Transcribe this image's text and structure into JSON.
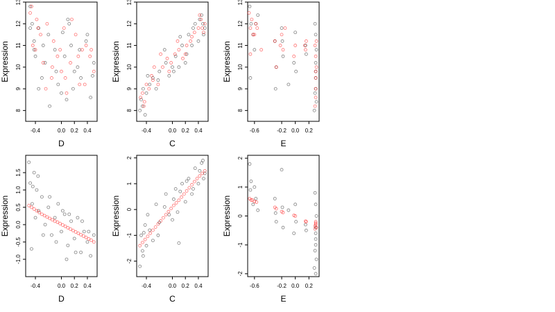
{
  "colors": {
    "black_points": "#1a1a1a",
    "red_points": "#ff0000",
    "axis": "#000000",
    "background": "#ffffff"
  },
  "chart_data": [
    {
      "type": "scatter",
      "xlabel": "D",
      "ylabel": "Expression",
      "xlim": [
        -0.55,
        0.55
      ],
      "ylim": [
        7.5,
        13.0
      ],
      "xticks": [
        -0.4,
        0.0,
        0.2,
        0.4
      ],
      "xtick_labels": [
        "-0.4",
        "0.0",
        "0.2",
        "0.4"
      ],
      "yticks": [
        8,
        9,
        10,
        11,
        12,
        13
      ],
      "ytick_labels": [
        "8",
        "9",
        "10",
        "11",
        "12",
        "13"
      ],
      "grid": false,
      "series": [
        {
          "color": "#1a1a1a",
          "x": [
            -0.48,
            -0.45,
            -0.42,
            -0.4,
            -0.35,
            -0.3,
            -0.25,
            -0.2,
            -0.1,
            -0.05,
            0.0,
            0.05,
            0.1,
            0.15,
            0.2,
            0.25,
            0.3,
            0.4,
            0.45,
            0.5,
            -0.48,
            -0.42,
            -0.35,
            -0.28,
            -0.18,
            -0.08,
            0.02,
            0.08,
            0.12,
            0.18,
            0.28,
            0.38,
            0.48
          ],
          "y": [
            12.8,
            12.0,
            11.2,
            10.5,
            11.8,
            9.5,
            10.2,
            11.5,
            10.8,
            9.2,
            8.8,
            10.5,
            12.2,
            11.0,
            9.8,
            10.0,
            9.5,
            11.5,
            8.6,
            10.2,
            11.8,
            10.8,
            9.0,
            11.0,
            8.2,
            9.8,
            11.6,
            8.5,
            12.0,
            9.0,
            10.8,
            11.2,
            9.6
          ]
        },
        {
          "color": "#ff0000",
          "x": [
            -0.48,
            -0.44,
            -0.4,
            -0.38,
            -0.32,
            -0.28,
            -0.22,
            -0.15,
            -0.12,
            -0.06,
            0.0,
            0.04,
            0.08,
            0.14,
            0.22,
            0.28,
            0.32,
            0.38,
            0.44,
            0.5,
            -0.46,
            -0.36,
            -0.24,
            -0.14,
            -0.02,
            0.06,
            0.16,
            0.26,
            0.36,
            0.46
          ],
          "y": [
            12.5,
            11.0,
            10.8,
            12.2,
            11.5,
            10.2,
            12.0,
            9.5,
            11.2,
            10.5,
            9.8,
            11.8,
            8.8,
            10.2,
            11.5,
            9.2,
            10.8,
            11.0,
            10.5,
            9.8,
            12.8,
            11.8,
            9.0,
            10.0,
            10.8,
            9.5,
            12.2,
            10.5,
            9.2,
            10.8
          ]
        }
      ]
    },
    {
      "type": "scatter",
      "xlabel": "C",
      "ylabel": "Expression",
      "xlim": [
        -0.55,
        0.55
      ],
      "ylim": [
        7.5,
        13.0
      ],
      "xticks": [
        -0.4,
        0.0,
        0.2,
        0.4
      ],
      "xtick_labels": [
        "-0.4",
        "0.0",
        "0.2",
        "0.4"
      ],
      "yticks": [
        8,
        9,
        10,
        11,
        12,
        13
      ],
      "ytick_labels": [
        "8",
        "9",
        "10",
        "11",
        "12",
        "13"
      ],
      "grid": false,
      "series": [
        {
          "color": "#1a1a1a",
          "x": [
            -0.5,
            -0.48,
            -0.45,
            -0.42,
            -0.4,
            -0.35,
            -0.3,
            -0.25,
            -0.2,
            -0.1,
            -0.05,
            0.0,
            0.05,
            0.1,
            0.15,
            0.2,
            0.25,
            0.3,
            0.35,
            0.4,
            0.45,
            0.48,
            0.5,
            -0.46,
            -0.38,
            -0.22,
            -0.12,
            0.02,
            0.12,
            0.22,
            0.32,
            0.42,
            0.47
          ],
          "y": [
            8.0,
            8.5,
            9.0,
            7.8,
            8.8,
            9.2,
            9.5,
            9.0,
            9.8,
            10.2,
            9.6,
            10.0,
            10.5,
            10.0,
            11.0,
            10.2,
            11.5,
            11.0,
            12.0,
            11.2,
            12.4,
            11.5,
            11.8,
            8.2,
            9.6,
            9.4,
            10.8,
            9.8,
            11.4,
            10.6,
            11.8,
            12.2,
            12.0
          ]
        },
        {
          "color": "#ff0000",
          "x": [
            -0.49,
            -0.46,
            -0.43,
            -0.4,
            -0.36,
            -0.32,
            -0.28,
            -0.22,
            -0.15,
            -0.08,
            -0.02,
            0.04,
            0.1,
            0.16,
            0.22,
            0.28,
            0.34,
            0.4,
            0.44,
            0.48,
            0.5,
            -0.44,
            -0.3,
            -0.18,
            -0.05,
            0.08,
            0.2,
            0.3,
            0.42,
            0.46
          ],
          "y": [
            8.6,
            8.8,
            8.4,
            9.2,
            9.0,
            9.6,
            10.0,
            9.2,
            10.0,
            10.4,
            10.2,
            10.6,
            10.8,
            10.4,
            11.0,
            11.2,
            11.6,
            11.8,
            12.2,
            11.6,
            12.0,
            8.2,
            9.4,
            10.6,
            9.8,
            11.2,
            10.6,
            11.4,
            12.4,
            11.8
          ]
        }
      ]
    },
    {
      "type": "scatter",
      "xlabel": "E",
      "ylabel": "Expression",
      "xlim": [
        -0.7,
        0.35
      ],
      "ylim": [
        7.5,
        13.0
      ],
      "xticks": [
        -0.6,
        -0.2,
        0.0,
        0.2
      ],
      "xtick_labels": [
        "-0.6",
        "-0.2",
        "0.0",
        "0.2"
      ],
      "yticks": [
        8,
        9,
        10,
        11,
        12,
        13
      ],
      "ytick_labels": [
        "8",
        "9",
        "10",
        "11",
        "12",
        "13"
      ],
      "grid": false,
      "series": [
        {
          "color": "#1a1a1a",
          "x": [
            -0.67,
            -0.65,
            -0.62,
            -0.6,
            -0.55,
            -0.3,
            -0.28,
            -0.2,
            -0.18,
            -0.1,
            -0.02,
            0.0,
            0.15,
            0.28,
            0.29,
            0.3,
            0.3,
            0.31,
            0.3,
            0.29,
            0.31,
            0.3,
            0.3,
            -0.66,
            -0.58,
            -0.29,
            -0.19,
            0.01,
            0.16
          ],
          "y": [
            12.8,
            12.0,
            11.5,
            10.8,
            12.4,
            11.2,
            10.0,
            11.8,
            10.5,
            9.2,
            10.2,
            11.6,
            11.0,
            8.0,
            8.8,
            9.5,
            10.2,
            10.8,
            11.5,
            12.0,
            8.4,
            9.8,
            9.0,
            9.5,
            12.0,
            9.0,
            11.2,
            9.8,
            10.6
          ]
        },
        {
          "color": "#ff0000",
          "x": [
            -0.68,
            -0.66,
            -0.64,
            -0.62,
            -0.58,
            -0.56,
            -0.5,
            -0.3,
            -0.28,
            -0.2,
            -0.18,
            -0.15,
            -0.02,
            0.0,
            0.15,
            0.16,
            0.29,
            0.3,
            0.3,
            0.31,
            0.3,
            0.29,
            0.3,
            0.3,
            0.31,
            -0.66,
            -0.6,
            -0.22,
            0.14
          ],
          "y": [
            12.5,
            11.8,
            12.2,
            11.5,
            12.0,
            11.8,
            10.8,
            11.2,
            10.0,
            11.5,
            10.8,
            11.8,
            10.5,
            11.0,
            10.8,
            11.2,
            8.2,
            9.0,
            9.5,
            10.0,
            10.5,
            11.0,
            8.6,
            9.8,
            11.2,
            10.6,
            11.5,
            11.0,
            11.0
          ]
        }
      ]
    },
    {
      "type": "scatter",
      "xlabel": "D",
      "ylabel": "Expression",
      "xlim": [
        -0.55,
        0.55
      ],
      "ylim": [
        -1.5,
        2.0
      ],
      "xticks": [
        -0.4,
        0.0,
        0.2,
        0.4
      ],
      "xtick_labels": [
        "-0.4",
        "0.0",
        "0.2",
        "0.4"
      ],
      "yticks": [
        -1.0,
        -0.5,
        0.0,
        0.5,
        1.0,
        1.5
      ],
      "ytick_labels": [
        "-1.0",
        "-0.5",
        "0.0",
        "0.5",
        "1.0",
        "1.5"
      ],
      "grid": false,
      "series": [
        {
          "color": "#1a1a1a",
          "x": [
            -0.5,
            -0.48,
            -0.45,
            -0.42,
            -0.4,
            -0.38,
            -0.35,
            -0.3,
            -0.25,
            -0.2,
            -0.15,
            -0.1,
            -0.05,
            0.0,
            0.05,
            0.1,
            0.15,
            0.2,
            0.25,
            0.3,
            0.35,
            0.4,
            0.45,
            0.5,
            -0.46,
            -0.36,
            -0.28,
            -0.18,
            -0.08,
            0.02,
            0.12,
            0.22,
            0.32,
            0.42,
            -0.44,
            0.08
          ],
          "y": [
            1.8,
            1.2,
            0.6,
            1.5,
            0.2,
            1.0,
            0.4,
            0.8,
            0.0,
            0.5,
            -0.3,
            0.2,
            0.6,
            -0.2,
            0.3,
            -0.6,
            0.1,
            -0.4,
            0.2,
            -0.8,
            -0.2,
            -0.5,
            -0.9,
            -0.3,
            -0.7,
            1.4,
            -0.3,
            0.8,
            -0.5,
            0.4,
            0.3,
            -0.8,
            0.1,
            -0.2,
            1.1,
            -1.0
          ]
        },
        {
          "color": "#ff0000",
          "x": [
            -0.5,
            -0.46,
            -0.42,
            -0.38,
            -0.34,
            -0.3,
            -0.26,
            -0.22,
            -0.18,
            -0.14,
            -0.1,
            -0.06,
            -0.02,
            0.02,
            0.06,
            0.1,
            0.14,
            0.18,
            0.22,
            0.26,
            0.3,
            0.34,
            0.38,
            0.42,
            0.46,
            0.5
          ],
          "y": [
            0.55,
            0.5,
            0.45,
            0.4,
            0.35,
            0.3,
            0.26,
            0.22,
            0.18,
            0.14,
            0.1,
            0.07,
            0.03,
            -0.01,
            -0.05,
            -0.09,
            -0.13,
            -0.17,
            -0.21,
            -0.25,
            -0.29,
            -0.33,
            -0.37,
            -0.41,
            -0.45,
            -0.5
          ]
        }
      ]
    },
    {
      "type": "scatter",
      "xlabel": "C",
      "ylabel": "Expression",
      "xlim": [
        -0.55,
        0.55
      ],
      "ylim": [
        -2.6,
        2.1
      ],
      "xticks": [
        -0.4,
        0.0,
        0.2,
        0.4
      ],
      "xtick_labels": [
        "-0.4",
        "0.0",
        "0.2",
        "0.4"
      ],
      "yticks": [
        -2,
        -1,
        0,
        1,
        2
      ],
      "ytick_labels": [
        "-2",
        "-1",
        "0",
        "1",
        "2"
      ],
      "grid": false,
      "series": [
        {
          "color": "#1a1a1a",
          "x": [
            -0.5,
            -0.48,
            -0.45,
            -0.42,
            -0.4,
            -0.35,
            -0.3,
            -0.25,
            -0.2,
            -0.1,
            -0.05,
            0.0,
            0.05,
            0.1,
            0.15,
            0.2,
            0.25,
            0.3,
            0.35,
            0.4,
            0.45,
            0.48,
            0.5,
            -0.46,
            -0.38,
            -0.22,
            -0.12,
            0.02,
            0.12,
            0.22,
            0.32,
            0.42,
            -0.44,
            0.08,
            0.47
          ],
          "y": [
            -2.2,
            -1.0,
            -1.8,
            -0.6,
            -1.4,
            -0.8,
            -1.2,
            0.2,
            -0.5,
            0.6,
            -0.2,
            -0.4,
            0.8,
            -1.3,
            1.0,
            0.3,
            1.2,
            0.6,
            1.6,
            1.0,
            1.8,
            1.2,
            1.4,
            -1.6,
            -0.2,
            -1.0,
            0.1,
            0.4,
            0.7,
            1.1,
            0.8,
            1.5,
            -0.9,
            -0.1,
            1.9
          ]
        },
        {
          "color": "#ff0000",
          "x": [
            -0.5,
            -0.46,
            -0.42,
            -0.38,
            -0.34,
            -0.3,
            -0.26,
            -0.22,
            -0.18,
            -0.14,
            -0.1,
            -0.06,
            -0.02,
            0.02,
            0.06,
            0.1,
            0.14,
            0.18,
            0.22,
            0.26,
            0.3,
            0.34,
            0.38,
            0.42,
            0.46,
            0.5
          ],
          "y": [
            -1.4,
            -1.28,
            -1.16,
            -1.04,
            -0.92,
            -0.8,
            -0.68,
            -0.56,
            -0.44,
            -0.32,
            -0.2,
            -0.08,
            0.04,
            0.16,
            0.26,
            0.36,
            0.48,
            0.6,
            0.72,
            0.84,
            0.96,
            1.08,
            1.2,
            1.3,
            1.4,
            1.5
          ]
        }
      ]
    },
    {
      "type": "scatter",
      "xlabel": "E",
      "ylabel": "Expression",
      "xlim": [
        -0.7,
        0.35
      ],
      "ylim": [
        -2.1,
        2.1
      ],
      "xticks": [
        -0.6,
        -0.2,
        0.0,
        0.2
      ],
      "xtick_labels": [
        "-0.6",
        "-0.2",
        "0.0",
        "0.2"
      ],
      "yticks": [
        -2,
        -1,
        0,
        1,
        2
      ],
      "ytick_labels": [
        "-2",
        "-1",
        "0",
        "1",
        "2"
      ],
      "grid": false,
      "series": [
        {
          "color": "#1a1a1a",
          "x": [
            -0.67,
            -0.65,
            -0.62,
            -0.6,
            -0.55,
            -0.3,
            -0.28,
            -0.2,
            -0.18,
            -0.1,
            -0.02,
            0.0,
            0.15,
            0.28,
            0.29,
            0.3,
            0.3,
            0.31,
            0.3,
            0.29,
            0.31,
            0.3,
            0.3,
            -0.66,
            -0.58,
            -0.29,
            -0.19,
            0.01,
            0.16,
            0.3
          ],
          "y": [
            1.8,
            1.2,
            0.4,
            1.0,
            0.2,
            0.6,
            -0.2,
            1.6,
            -0.4,
            0.2,
            -0.6,
            0.4,
            -0.3,
            -1.8,
            -1.2,
            -0.8,
            -0.4,
            0.0,
            0.4,
            0.8,
            -1.5,
            -0.6,
            -1.0,
            0.9,
            0.6,
            0.1,
            0.3,
            -0.2,
            -0.5,
            -2.0
          ]
        },
        {
          "color": "#ff0000",
          "x": [
            -0.67,
            -0.65,
            -0.63,
            -0.6,
            -0.57,
            -0.3,
            -0.28,
            -0.2,
            -0.18,
            -0.02,
            0.0,
            0.15,
            0.16,
            0.29,
            0.3,
            0.3,
            0.31,
            0.3,
            0.29
          ],
          "y": [
            0.6,
            0.55,
            0.55,
            0.5,
            0.48,
            0.3,
            0.25,
            0.15,
            0.12,
            0.02,
            0.0,
            -0.18,
            -0.2,
            -0.35,
            -0.3,
            -0.25,
            -0.4,
            -0.2,
            -0.45
          ]
        }
      ]
    }
  ]
}
